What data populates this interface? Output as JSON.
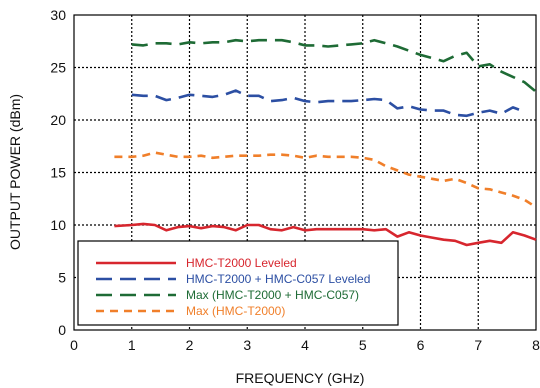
{
  "chart_data": {
    "type": "line",
    "title": "",
    "xlabel": "FREQUENCY (GHz)",
    "ylabel": "OUTPUT POWER (dBm)",
    "xlim": [
      0,
      8
    ],
    "ylim": [
      0,
      30
    ],
    "xticks": [
      "0",
      "1",
      "2",
      "3",
      "4",
      "5",
      "6",
      "7",
      "8"
    ],
    "yticks": [
      "0",
      "5",
      "10",
      "15",
      "20",
      "25",
      "30"
    ],
    "grid": true,
    "legend_position": "bottom-left",
    "series": [
      {
        "name": "HMC-T2000 Leveled",
        "color": "#d7262e",
        "dash": "solid",
        "x": [
          0.7,
          1.0,
          1.2,
          1.4,
          1.6,
          1.8,
          2.0,
          2.2,
          2.4,
          2.6,
          2.8,
          3.0,
          3.2,
          3.4,
          3.6,
          3.8,
          4.0,
          4.2,
          4.4,
          4.6,
          4.8,
          5.0,
          5.2,
          5.4,
          5.6,
          5.8,
          6.0,
          6.2,
          6.4,
          6.6,
          6.8,
          7.0,
          7.2,
          7.4,
          7.6,
          7.8,
          8.0
        ],
        "y": [
          9.9,
          10.0,
          10.1,
          10.0,
          9.5,
          9.8,
          9.9,
          9.7,
          9.9,
          9.8,
          9.5,
          10.0,
          10.0,
          9.6,
          9.5,
          9.8,
          9.5,
          9.6,
          9.6,
          9.6,
          9.6,
          9.6,
          9.5,
          9.6,
          8.9,
          9.3,
          9.0,
          8.8,
          8.6,
          8.5,
          8.1,
          8.3,
          8.5,
          8.3,
          9.3,
          9.0,
          8.6
        ]
      },
      {
        "name": "HMC-T2000 + HMC-C057 Leveled",
        "color": "#2c4fa3",
        "dash": "long",
        "x": [
          1.0,
          1.2,
          1.4,
          1.6,
          1.8,
          2.0,
          2.2,
          2.4,
          2.6,
          2.8,
          3.0,
          3.2,
          3.4,
          3.6,
          3.8,
          4.0,
          4.2,
          4.4,
          4.6,
          4.8,
          5.0,
          5.2,
          5.4,
          5.6,
          5.8,
          6.0,
          6.2,
          6.4,
          6.6,
          6.8,
          7.0,
          7.2,
          7.4,
          7.6,
          7.8
        ],
        "y": [
          22.4,
          22.3,
          22.3,
          21.9,
          22.1,
          22.4,
          22.3,
          22.2,
          22.4,
          22.8,
          22.3,
          22.3,
          21.8,
          21.9,
          22.1,
          21.8,
          21.7,
          21.8,
          21.8,
          21.8,
          21.9,
          22.0,
          21.9,
          21.1,
          21.3,
          21.0,
          20.9,
          20.9,
          20.5,
          20.4,
          20.7,
          20.9,
          20.6,
          21.2,
          20.8
        ]
      },
      {
        "name": "Max (HMC-T2000 + HMC-C057)",
        "color": "#1e6b35",
        "dash": "long",
        "x": [
          1.0,
          1.2,
          1.4,
          1.6,
          1.8,
          2.0,
          2.2,
          2.4,
          2.6,
          2.8,
          3.0,
          3.2,
          3.4,
          3.6,
          3.8,
          4.0,
          4.2,
          4.4,
          4.6,
          4.8,
          5.0,
          5.2,
          5.4,
          5.6,
          5.8,
          6.0,
          6.2,
          6.4,
          6.6,
          6.8,
          7.0,
          7.2,
          7.4,
          7.6,
          7.8,
          8.0
        ],
        "y": [
          27.2,
          27.1,
          27.3,
          27.3,
          27.2,
          27.4,
          27.3,
          27.4,
          27.4,
          27.6,
          27.5,
          27.6,
          27.6,
          27.6,
          27.4,
          27.1,
          27.1,
          27.0,
          27.1,
          27.2,
          27.3,
          27.6,
          27.3,
          27.0,
          26.6,
          26.2,
          25.9,
          25.6,
          26.1,
          26.4,
          25.1,
          25.3,
          24.6,
          24.1,
          23.6,
          22.7
        ]
      },
      {
        "name": "Max (HMC-T2000)",
        "color": "#f07f2a",
        "dash": "short",
        "x": [
          0.7,
          1.0,
          1.2,
          1.4,
          1.6,
          1.8,
          2.0,
          2.2,
          2.4,
          2.6,
          2.8,
          3.0,
          3.2,
          3.4,
          3.6,
          3.8,
          4.0,
          4.2,
          4.4,
          4.6,
          4.8,
          5.0,
          5.2,
          5.4,
          5.6,
          5.8,
          6.0,
          6.2,
          6.4,
          6.6,
          6.8,
          7.0,
          7.2,
          7.4,
          7.6,
          7.8,
          8.0
        ],
        "y": [
          16.5,
          16.5,
          16.6,
          16.9,
          16.7,
          16.5,
          16.5,
          16.6,
          16.4,
          16.5,
          16.6,
          16.6,
          16.6,
          16.7,
          16.7,
          16.6,
          16.4,
          16.6,
          16.5,
          16.5,
          16.5,
          16.4,
          16.2,
          15.6,
          15.2,
          14.8,
          14.6,
          14.4,
          14.2,
          14.4,
          14.0,
          13.5,
          13.4,
          13.1,
          12.8,
          12.4,
          11.7
        ]
      }
    ]
  }
}
